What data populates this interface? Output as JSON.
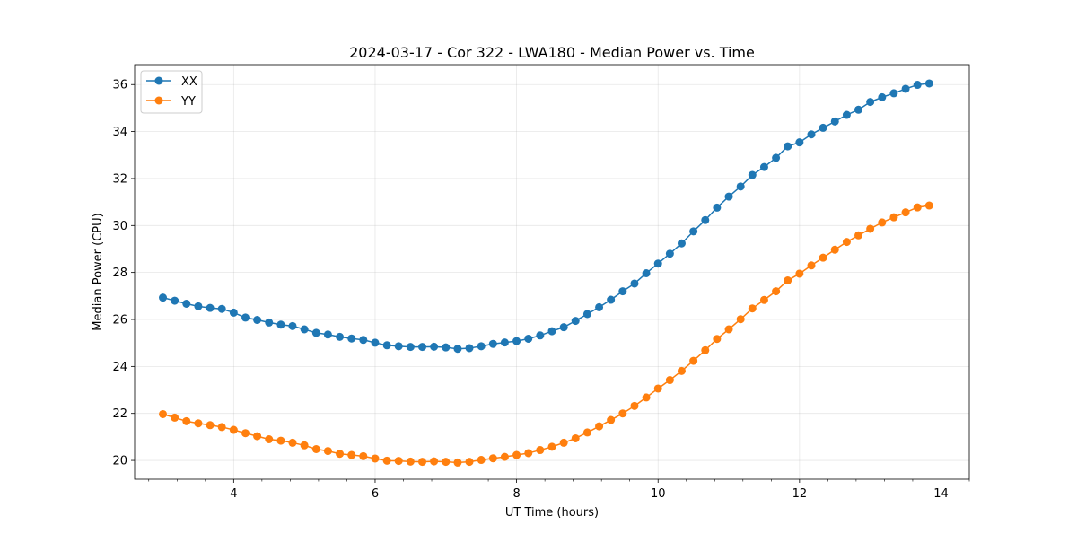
{
  "chart_data": {
    "type": "line",
    "title": "2024-03-17 - Cor 322 - LWA180 - Median Power vs. Time",
    "xlabel": "UT Time (hours)",
    "ylabel": "Median Power (CPU)",
    "xlim": [
      2.6,
      14.4
    ],
    "ylim": [
      19.2,
      36.85
    ],
    "x_ticks": [
      4,
      6,
      8,
      10,
      12,
      14
    ],
    "x_tick_labels": [
      "4",
      "6",
      "8",
      "10",
      "12",
      "14"
    ],
    "x_minor_step": 0.4,
    "y_ticks": [
      20,
      22,
      24,
      26,
      28,
      30,
      32,
      34,
      36
    ],
    "y_tick_labels": [
      "20",
      "22",
      "24",
      "26",
      "28",
      "30",
      "32",
      "34",
      "36"
    ],
    "grid": true,
    "legend": {
      "position": "upper-left"
    },
    "x": [
      3.0,
      3.167,
      3.333,
      3.5,
      3.667,
      3.833,
      4.0,
      4.167,
      4.333,
      4.5,
      4.667,
      4.833,
      5.0,
      5.167,
      5.333,
      5.5,
      5.667,
      5.833,
      6.0,
      6.167,
      6.333,
      6.5,
      6.667,
      6.833,
      7.0,
      7.167,
      7.333,
      7.5,
      7.667,
      7.833,
      8.0,
      8.167,
      8.333,
      8.5,
      8.667,
      8.833,
      9.0,
      9.167,
      9.333,
      9.5,
      9.667,
      9.833,
      10.0,
      10.167,
      10.333,
      10.5,
      10.667,
      10.833,
      11.0,
      11.167,
      11.333,
      11.5,
      11.667,
      11.833,
      12.0,
      12.167,
      12.333,
      12.5,
      12.667,
      12.833,
      13.0,
      13.167,
      13.333,
      13.5,
      13.667,
      13.833
    ],
    "series": [
      {
        "name": "XX",
        "color": "#1f77b4",
        "values": [
          26.93,
          26.8,
          26.67,
          26.56,
          26.49,
          26.45,
          26.29,
          26.08,
          25.98,
          25.87,
          25.78,
          25.72,
          25.58,
          25.43,
          25.36,
          25.26,
          25.19,
          25.13,
          25.01,
          24.9,
          24.86,
          24.83,
          24.83,
          24.84,
          24.81,
          24.75,
          24.78,
          24.86,
          24.96,
          25.02,
          25.08,
          25.18,
          25.32,
          25.5,
          25.67,
          25.94,
          26.23,
          26.52,
          26.84,
          27.2,
          27.53,
          27.97,
          28.38,
          28.8,
          29.24,
          29.75,
          30.23,
          30.76,
          31.23,
          31.66,
          32.15,
          32.49,
          32.88,
          33.37,
          33.54,
          33.88,
          34.16,
          34.43,
          34.71,
          34.93,
          35.26,
          35.46,
          35.63,
          35.82,
          35.99,
          36.05
        ]
      },
      {
        "name": "YY",
        "color": "#ff7f0e",
        "values": [
          21.97,
          21.82,
          21.67,
          21.58,
          21.5,
          21.42,
          21.3,
          21.16,
          21.03,
          20.9,
          20.84,
          20.75,
          20.64,
          20.48,
          20.4,
          20.28,
          20.23,
          20.18,
          20.08,
          19.99,
          19.98,
          19.95,
          19.94,
          19.96,
          19.94,
          19.91,
          19.94,
          20.02,
          20.09,
          20.15,
          20.23,
          20.31,
          20.44,
          20.58,
          20.75,
          20.94,
          21.19,
          21.45,
          21.72,
          22.0,
          22.32,
          22.68,
          23.06,
          23.42,
          23.81,
          24.24,
          24.69,
          25.17,
          25.58,
          26.01,
          26.47,
          26.83,
          27.2,
          27.66,
          27.95,
          28.3,
          28.63,
          28.97,
          29.3,
          29.58,
          29.86,
          30.13,
          30.35,
          30.56,
          30.77,
          30.85
        ]
      }
    ]
  }
}
